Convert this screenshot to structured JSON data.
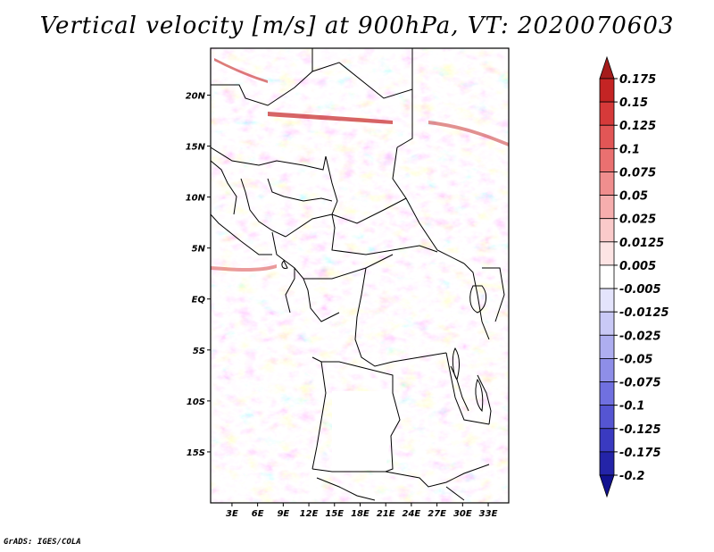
{
  "title": "Vertical velocity [m/s] at 900hPa, VT: 2020070603",
  "credit": "GrADS: IGES/COLA",
  "map": {
    "lat_labels": [
      {
        "text": "20N",
        "lat": 20
      },
      {
        "text": "15N",
        "lat": 15
      },
      {
        "text": "10N",
        "lat": 10
      },
      {
        "text": "5N",
        "lat": 5
      },
      {
        "text": "EQ",
        "lat": 0
      },
      {
        "text": "5S",
        "lat": -5
      },
      {
        "text": "10S",
        "lat": -10
      },
      {
        "text": "15S",
        "lat": -15
      }
    ],
    "lon_labels": [
      {
        "text": "3E",
        "lon": 3
      },
      {
        "text": "6E",
        "lon": 6
      },
      {
        "text": "9E",
        "lon": 9
      },
      {
        "text": "12E",
        "lon": 12
      },
      {
        "text": "15E",
        "lon": 15
      },
      {
        "text": "18E",
        "lon": 18
      },
      {
        "text": "21E",
        "lon": 21
      },
      {
        "text": "24E",
        "lon": 24
      },
      {
        "text": "27E",
        "lon": 27
      },
      {
        "text": "30E",
        "lon": 30
      },
      {
        "text": "33E",
        "lon": 33
      }
    ],
    "extent": {
      "lon_min": 0.5,
      "lon_max": 35.4,
      "lat_min": -20.0,
      "lat_max": 24.6
    }
  },
  "colorbar": {
    "labels": [
      "0.175",
      "0.15",
      "0.125",
      "0.1",
      "0.075",
      "0.05",
      "0.025",
      "0.0125",
      "0.005",
      "-0.005",
      "-0.0125",
      "-0.025",
      "-0.05",
      "-0.075",
      "-0.1",
      "-0.125",
      "-0.175",
      "-0.2"
    ],
    "colors": [
      "#a51c1c",
      "#c42424",
      "#d63a3a",
      "#e25656",
      "#ea7070",
      "#f08e8e",
      "#f6aeae",
      "#facaca",
      "#fde4e4",
      "#ffffff",
      "#e4e4fc",
      "#c9c9f6",
      "#aeaef0",
      "#8e8ee8",
      "#7070e0",
      "#5555d2",
      "#3a3ac0",
      "#2424a8",
      "#121290"
    ]
  }
}
